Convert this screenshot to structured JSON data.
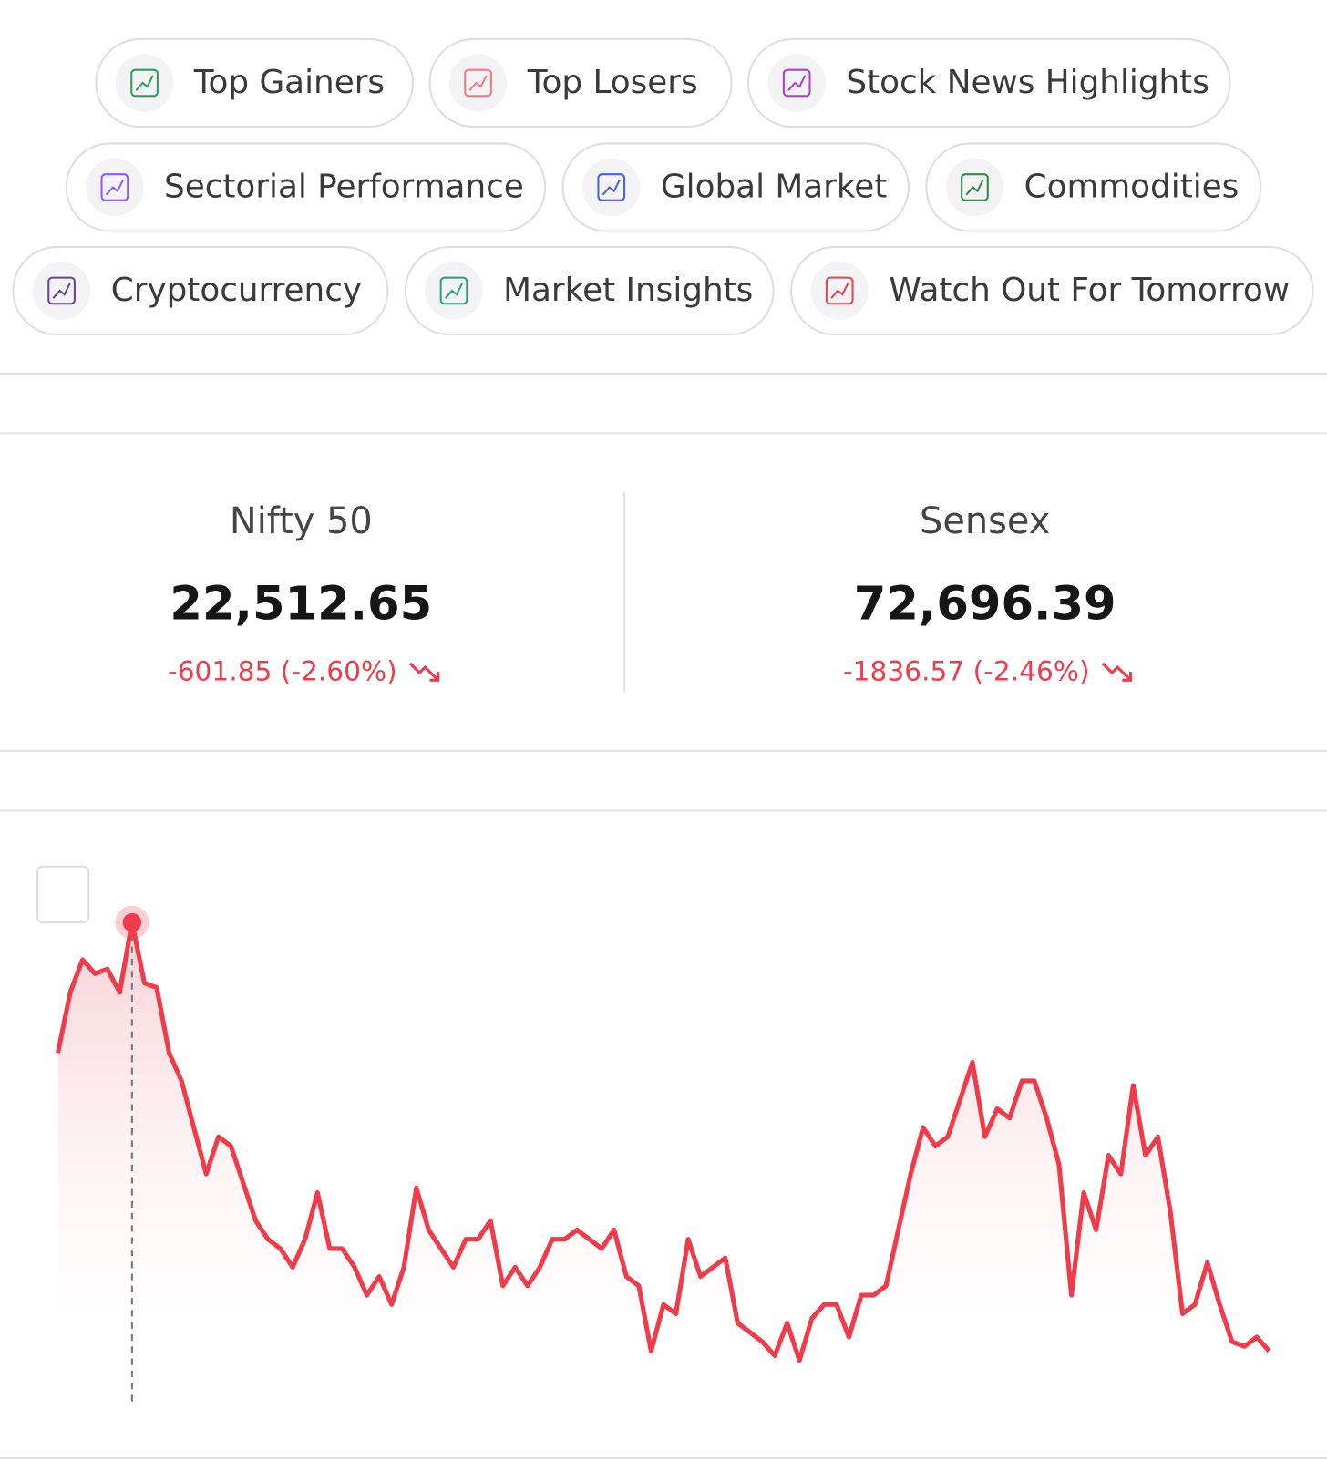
{
  "pills": [
    [
      "Top Gainers",
      "Top Losers",
      "Stock News Highlights"
    ],
    [
      "Sectorial Performance",
      "Global Market",
      "Commodities"
    ],
    [
      "Cryptocurrency",
      "Market Insights",
      "Watch Out For Tomorrow"
    ]
  ],
  "indices": [
    {
      "name": "Nifty 50",
      "value": "22,512.65",
      "change": "-601.85 (-2.60%)"
    },
    {
      "name": "Sensex",
      "value": "72,696.39",
      "change": "-1836.57 (-2.46%)"
    }
  ],
  "chart_data": {
    "type": "line",
    "color": "#ef3b4a",
    "ylim": [
      0,
      560
    ],
    "values": [
      380,
      445,
      480,
      465,
      470,
      445,
      520,
      455,
      450,
      380,
      350,
      300,
      250,
      290,
      280,
      240,
      200,
      180,
      170,
      150,
      180,
      230,
      170,
      170,
      150,
      120,
      140,
      110,
      150,
      235,
      190,
      170,
      150,
      180,
      180,
      200,
      130,
      150,
      130,
      150,
      180,
      180,
      190,
      180,
      170,
      190,
      140,
      130,
      60,
      110,
      100,
      180,
      140,
      150,
      160,
      90,
      80,
      70,
      55,
      90,
      50,
      95,
      110,
      110,
      75,
      120,
      120,
      130,
      190,
      250,
      300,
      280,
      290,
      330,
      370,
      290,
      320,
      310,
      350,
      350,
      310,
      260,
      120,
      230,
      190,
      270,
      250,
      345,
      270,
      290,
      210,
      100,
      110,
      155,
      110,
      70,
      65,
      75,
      60
    ]
  }
}
